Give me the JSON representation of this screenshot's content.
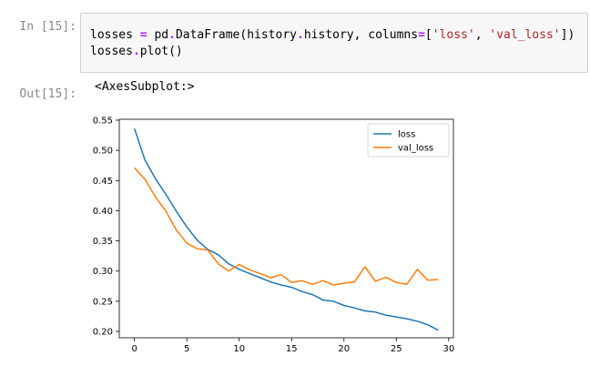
{
  "cell": {
    "in_prompt": "In [15]:",
    "out_prompt": "Out[15]:",
    "code": {
      "line1": {
        "a": "losses ",
        "op1": "=",
        "b": " pd",
        "op2": ".",
        "c": "DataFrame(history",
        "op3": ".",
        "d": "history, columns",
        "op4": "=",
        "e": "[",
        "s1": "'loss'",
        "f": ", ",
        "s2": "'val_loss'",
        "g": "])"
      },
      "line2": {
        "a": "losses",
        "op1": ".",
        "b": "plot()"
      }
    },
    "output_text": "<AxesSubplot:>"
  },
  "chart_data": {
    "type": "line",
    "xlim": [
      -1.45,
      30.45
    ],
    "ylim": [
      0.1895,
      0.5515
    ],
    "xticks": [
      0,
      5,
      10,
      15,
      20,
      25,
      30
    ],
    "yticks": [
      0.2,
      0.25,
      0.3,
      0.35,
      0.4,
      0.45,
      0.5,
      0.55
    ],
    "ytick_labels": [
      "0.20",
      "0.25",
      "0.30",
      "0.35",
      "0.40",
      "0.45",
      "0.50",
      "0.55"
    ],
    "grid": false,
    "legend_position": "upper right",
    "series": [
      {
        "name": "loss",
        "color": "#1f77b4",
        "x": [
          0,
          1,
          2,
          3,
          4,
          5,
          6,
          7,
          8,
          9,
          10,
          11,
          12,
          13,
          14,
          15,
          16,
          17,
          18,
          19,
          20,
          21,
          22,
          23,
          24,
          25,
          26,
          27,
          28,
          29
        ],
        "values": [
          0.536,
          0.484,
          0.453,
          0.427,
          0.399,
          0.373,
          0.351,
          0.336,
          0.327,
          0.312,
          0.303,
          0.296,
          0.289,
          0.282,
          0.277,
          0.273,
          0.266,
          0.261,
          0.252,
          0.25,
          0.243,
          0.239,
          0.234,
          0.232,
          0.227,
          0.224,
          0.221,
          0.217,
          0.211,
          0.202
        ]
      },
      {
        "name": "val_loss",
        "color": "#ff7f0e",
        "x": [
          0,
          1,
          2,
          3,
          4,
          5,
          6,
          7,
          8,
          9,
          10,
          11,
          12,
          13,
          14,
          15,
          16,
          17,
          18,
          19,
          20,
          21,
          22,
          23,
          24,
          25,
          26,
          27,
          28,
          29
        ],
        "values": [
          0.471,
          0.452,
          0.423,
          0.399,
          0.368,
          0.346,
          0.337,
          0.335,
          0.312,
          0.3,
          0.311,
          0.302,
          0.296,
          0.289,
          0.294,
          0.281,
          0.284,
          0.278,
          0.284,
          0.277,
          0.28,
          0.282,
          0.307,
          0.283,
          0.29,
          0.281,
          0.278,
          0.303,
          0.285,
          0.286
        ]
      }
    ]
  }
}
